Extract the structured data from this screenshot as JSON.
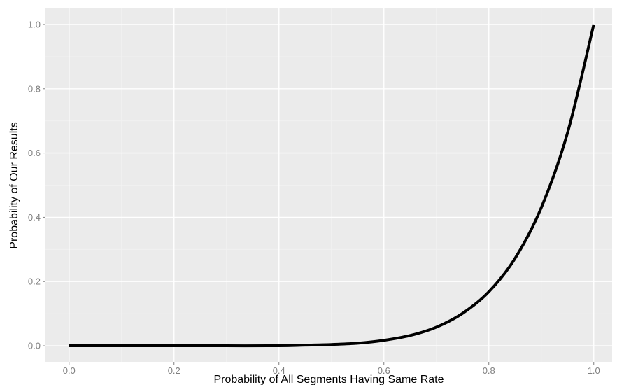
{
  "chart_data": {
    "type": "line",
    "title": "",
    "xlabel": "Probability of All Segments Having Same Rate",
    "ylabel": "Probability of Our Results",
    "xlim": [
      -0.045,
      1.035
    ],
    "ylim": [
      -0.05,
      1.05
    ],
    "x_ticks": [
      0.0,
      0.2,
      0.4,
      0.6,
      0.8,
      1.0
    ],
    "x_tick_labels": [
      "0.0",
      "0.2",
      "0.4",
      "0.6",
      "0.8",
      "1.0"
    ],
    "y_ticks": [
      0.0,
      0.2,
      0.4,
      0.6,
      0.8,
      1.0
    ],
    "y_tick_labels": [
      "0.0",
      "0.2",
      "0.4",
      "0.6",
      "0.8",
      "1.0"
    ],
    "grid": true,
    "legend": "none",
    "series": [
      {
        "x": [
          0.0,
          0.1,
          0.2,
          0.3,
          0.4,
          0.45,
          0.5,
          0.55,
          0.6,
          0.65,
          0.7,
          0.75,
          0.8,
          0.85,
          0.9,
          0.95,
          1.0
        ],
        "y": [
          0.0,
          0.0,
          0.0,
          0.0,
          0.0,
          0.002,
          0.004,
          0.008,
          0.017,
          0.032,
          0.058,
          0.101,
          0.168,
          0.272,
          0.43,
          0.663,
          1.0
        ]
      }
    ],
    "colors": {
      "panel_background": "#ebebeb",
      "grid_major": "#ffffff",
      "grid_minor": "#f2f2f2",
      "line": "#000000",
      "tick_label": "#7f7f7f",
      "axis_title": "#000000"
    }
  }
}
